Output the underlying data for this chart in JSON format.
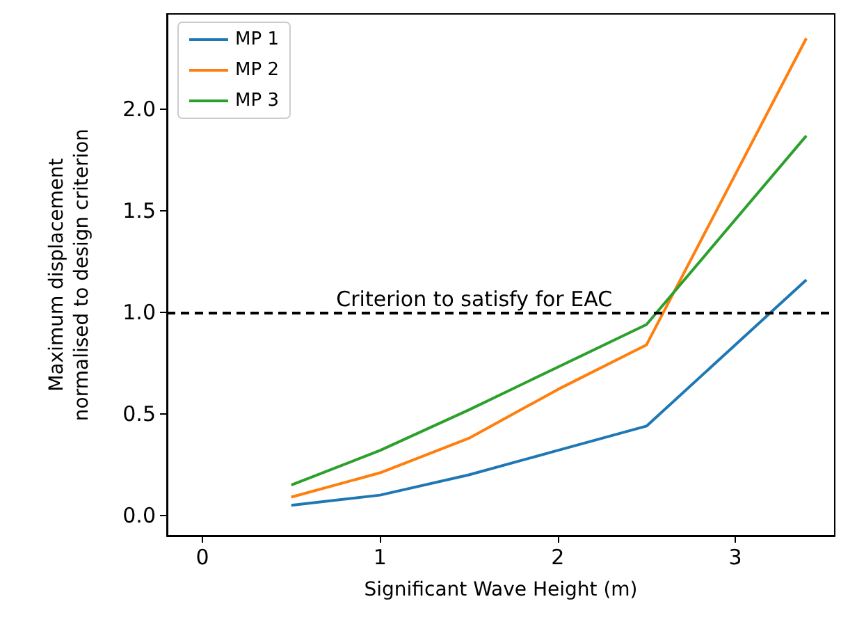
{
  "chart_data": {
    "type": "line",
    "xlabel": "Significant Wave Height (m)",
    "ylabel": "Maximum displacement\nnormalised to design criterion",
    "x": [
      0.5,
      1.0,
      1.5,
      2.0,
      2.5,
      3.4
    ],
    "series": [
      {
        "name": "MP 1",
        "color": "#1f77b4",
        "values": [
          0.05,
          0.1,
          0.2,
          0.32,
          0.44,
          1.16
        ]
      },
      {
        "name": "MP 2",
        "color": "#ff7f0e",
        "values": [
          0.09,
          0.21,
          0.38,
          0.62,
          0.84,
          2.35
        ]
      },
      {
        "name": "MP 3",
        "color": "#2ca02c",
        "values": [
          0.15,
          0.32,
          0.52,
          0.73,
          0.94,
          1.87
        ]
      }
    ],
    "xlim": [
      -0.2,
      3.56
    ],
    "xticks": [
      0,
      1,
      2,
      3
    ],
    "ylim": [
      -0.1,
      2.47
    ],
    "yticks": [
      {
        "value": 0,
        "label": "0.0"
      },
      {
        "value": 0.5,
        "label": "0.5"
      },
      {
        "value": 1,
        "label": "1.0"
      },
      {
        "value": 1.5,
        "label": "1.5"
      },
      {
        "value": 2,
        "label": "2.0"
      }
    ],
    "ref_lines": [
      {
        "axis": "y",
        "value": 1.0,
        "color": "#000000",
        "line_style": "dashed"
      }
    ],
    "annotations": [
      {
        "text": "Criterion to satisfy for EAC",
        "x": 1.53,
        "y": 1.0
      }
    ],
    "legend": "top left",
    "grid": false,
    "marker": "none",
    "line_style": "solid"
  }
}
